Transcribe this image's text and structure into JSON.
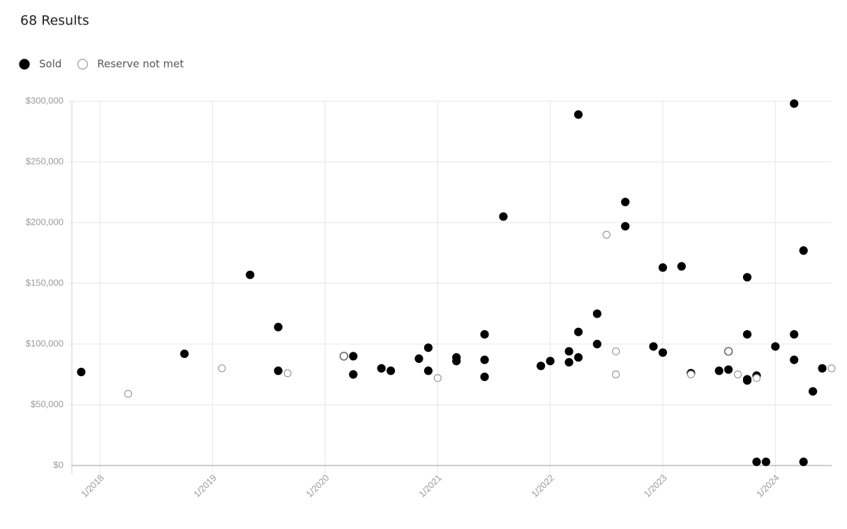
{
  "chart_data": {
    "type": "scatter",
    "title": "68 Results",
    "xlim": [
      "10/2017",
      "7/2024"
    ],
    "xticks": [
      "1/2018",
      "1/2019",
      "1/2020",
      "1/2021",
      "1/2022",
      "1/2023",
      "1/2024"
    ],
    "ylim": [
      0,
      300000
    ],
    "yticks": [
      {
        "value": 0,
        "label": "$0"
      },
      {
        "value": 50000,
        "label": "$50,000"
      },
      {
        "value": 100000,
        "label": "$100,000"
      },
      {
        "value": 150000,
        "label": "$150,000"
      },
      {
        "value": 200000,
        "label": "$200,000"
      },
      {
        "value": 250000,
        "label": "$250,000"
      },
      {
        "value": 300000,
        "label": "$300,000"
      }
    ],
    "grid": true,
    "legend": "top-left",
    "series": [
      {
        "name": "Sold",
        "color": "#000000",
        "marker": "filled",
        "x": [
          "11/2017",
          "10/2018",
          "5/2019",
          "8/2019",
          "8/2019",
          "3/2020",
          "4/2020",
          "4/2020",
          "7/2020",
          "8/2020",
          "11/2020",
          "12/2020",
          "12/2020",
          "3/2021",
          "3/2021",
          "6/2021",
          "6/2021",
          "6/2021",
          "8/2021",
          "12/2021",
          "1/2022",
          "3/2022",
          "3/2022",
          "4/2022",
          "4/2022",
          "4/2022",
          "6/2022",
          "6/2022",
          "9/2022",
          "9/2022",
          "12/2022",
          "1/2023",
          "1/2023",
          "3/2023",
          "4/2023",
          "7/2023",
          "8/2023",
          "8/2023",
          "10/2023",
          "10/2023",
          "10/2023",
          "10/2023",
          "11/2023",
          "11/2023",
          "12/2023",
          "1/2024",
          "3/2024",
          "3/2024",
          "3/2024",
          "4/2024",
          "4/2024",
          "5/2024",
          "6/2024"
        ],
        "values": [
          77000,
          92000,
          157000,
          114000,
          78000,
          90000,
          90000,
          75000,
          80000,
          78000,
          88000,
          97000,
          78000,
          86000,
          89000,
          87000,
          108000,
          73000,
          205000,
          82000,
          86000,
          94000,
          85000,
          289000,
          89000,
          110000,
          100000,
          125000,
          217000,
          197000,
          98000,
          163000,
          93000,
          164000,
          76000,
          78000,
          94000,
          79000,
          108000,
          155000,
          71000,
          70000,
          74000,
          3000,
          3000,
          98000,
          87000,
          108000,
          298000,
          3000,
          177000,
          61000,
          80000
        ]
      },
      {
        "name": "Reserve not met",
        "color": "#999999",
        "marker": "open",
        "x": [
          "4/2018",
          "2/2019",
          "9/2019",
          "3/2020",
          "1/2021",
          "7/2022",
          "8/2022",
          "8/2022",
          "4/2023",
          "8/2023",
          "9/2023",
          "11/2023",
          "7/2024"
        ],
        "values": [
          59000,
          80000,
          76000,
          90000,
          72000,
          190000,
          94000,
          75000,
          75000,
          94000,
          75000,
          72000,
          80000
        ]
      }
    ]
  }
}
